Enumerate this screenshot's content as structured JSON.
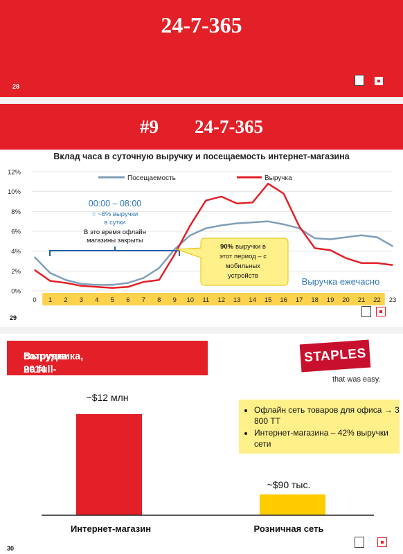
{
  "slide28": {
    "title": "24-7-365",
    "number": "28"
  },
  "slide29": {
    "title_num": "#9",
    "title": "24-7-365",
    "number": "29",
    "callout_time": "00:00 – 08:00",
    "callout_share": "= ~6% выручки",
    "callout_share2": "в сутки",
    "callout_note1": "В это время офлайн",
    "callout_note2": "магазины закрыты",
    "mobile_pct": "90%",
    "mobile_text1": "выручки в",
    "mobile_text2": "этот период – с",
    "mobile_text3": "мобильных",
    "mobile_text4": "устройств",
    "hourly_label": "Выручка ежечасно"
  },
  "slide30": {
    "banner_line1": "Выручка на full-time",
    "banner_line2": "сотрудника, 2014",
    "brand": "STAPLES",
    "tagline": "that was easy.",
    "bullets": [
      "Офлайн сеть товаров для офиса → 3 800 ТТ",
      "Интернет-магазина – 42% выручки сети"
    ],
    "number": "30"
  },
  "colors": {
    "red": "#e32028",
    "visits_line": "#7f9fb8",
    "revenue_line": "#e32028",
    "highlight": "#fff08a",
    "bar_online": "#e32028",
    "bar_retail": "#ffcc00",
    "blue_text": "#2e75b6"
  },
  "chart_data": [
    {
      "type": "line",
      "title": "Вклад часа в суточную выручку и посещаемость интернет-магазина",
      "x": [
        0,
        1,
        2,
        3,
        4,
        5,
        6,
        7,
        8,
        9,
        10,
        11,
        12,
        13,
        14,
        15,
        16,
        17,
        18,
        19,
        20,
        21,
        22,
        23
      ],
      "xticks": [
        "0",
        "1",
        "2",
        "3",
        "4",
        "5",
        "6",
        "7",
        "8",
        "9",
        "10",
        "11",
        "12",
        "13",
        "14",
        "15",
        "16",
        "17",
        "18",
        "19",
        "20",
        "21",
        "22",
        "23"
      ],
      "highlighted_ticks": [
        1,
        2,
        3,
        4,
        5,
        6,
        7,
        8,
        9,
        10,
        11,
        12,
        13,
        14,
        15,
        16,
        17,
        18,
        19,
        20,
        21,
        22
      ],
      "yticks": [
        "0%",
        "2%",
        "4%",
        "6%",
        "8%",
        "10%",
        "12%"
      ],
      "ylim": [
        0,
        12
      ],
      "legend": "top",
      "series": [
        {
          "name": "Посещаемость",
          "values": [
            3.4,
            1.8,
            1.1,
            0.7,
            0.6,
            0.6,
            0.8,
            1.3,
            2.3,
            4.2,
            5.6,
            6.3,
            6.6,
            6.8,
            6.9,
            7.0,
            6.7,
            6.3,
            5.3,
            5.2,
            5.4,
            5.6,
            5.4,
            4.5
          ]
        },
        {
          "name": "Выручка",
          "values": [
            2.1,
            1.0,
            0.8,
            0.5,
            0.4,
            0.3,
            0.4,
            0.9,
            1.1,
            3.7,
            6.6,
            9.1,
            9.5,
            8.8,
            8.9,
            10.8,
            9.8,
            6.5,
            4.3,
            4.1,
            3.3,
            2.8,
            2.8,
            2.6
          ]
        }
      ]
    },
    {
      "type": "bar",
      "categories": [
        "Интернет-магазин",
        "Розничная сеть"
      ],
      "values": [
        12000000,
        90000
      ],
      "value_labels": [
        "~$12 млн",
        "~$90 тыс."
      ]
    }
  ]
}
